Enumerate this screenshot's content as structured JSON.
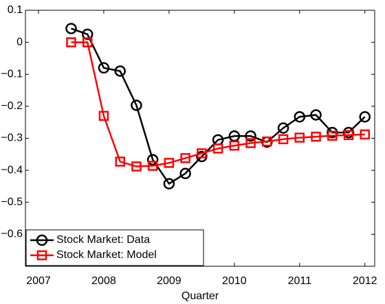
{
  "chart_data": {
    "type": "line",
    "xlabel": "Quarter",
    "x": [
      2007.5,
      2007.75,
      2008,
      2008.25,
      2008.5,
      2008.75,
      2009,
      2009.25,
      2009.5,
      2009.75,
      2010,
      2010.25,
      2010.5,
      2010.75,
      2011,
      2011.25,
      2011.5,
      2011.75,
      2012
    ],
    "series": [
      {
        "name": "Stock Market: Data",
        "color": "#000000",
        "marker": "circle",
        "values": [
          0.043,
          0.025,
          -0.08,
          -0.09,
          -0.197,
          -0.367,
          -0.442,
          -0.41,
          -0.357,
          -0.305,
          -0.293,
          -0.293,
          -0.312,
          -0.268,
          -0.233,
          -0.227,
          -0.282,
          -0.282,
          -0.233
        ]
      },
      {
        "name": "Stock Market: Model",
        "color": "#ff0000",
        "marker": "square",
        "values": [
          0,
          0,
          -0.23,
          -0.373,
          -0.388,
          -0.386,
          -0.377,
          -0.362,
          -0.347,
          -0.332,
          -0.323,
          -0.315,
          -0.31,
          -0.303,
          -0.298,
          -0.295,
          -0.292,
          -0.29,
          -0.288
        ]
      }
    ],
    "xlim": [
      2006.8,
      2012.15
    ],
    "xticks": [
      2007,
      2008,
      2009,
      2010,
      2011,
      2012
    ],
    "ylim": [
      -0.7,
      0.1
    ],
    "yticks": [
      0.1,
      0,
      {
        "value": -0.1,
        "label": "−0.1"
      },
      {
        "value": -0.2,
        "label": "−0.2"
      },
      {
        "value": -0.3,
        "label": "−0.3"
      },
      {
        "value": -0.4,
        "label": "−0.4"
      },
      {
        "value": -0.5,
        "label": "−0.5"
      },
      {
        "value": -0.6,
        "label": "−0.6"
      }
    ],
    "grid": false,
    "legend": "lower left"
  }
}
